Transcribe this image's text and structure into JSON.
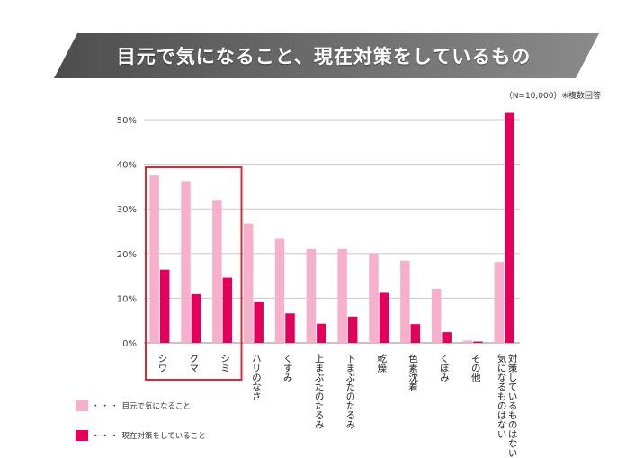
{
  "title": "目元で気になること、現在対策をしているもの",
  "note": "（N=10,000）※複数回答",
  "colors": {
    "concern": "#f7afcb",
    "action": "#e2005a",
    "highlight": "#d62c35",
    "banner_dark": "#4e4e4e",
    "banner_light": "#8a8a8a"
  },
  "legend": {
    "leader": "・・・",
    "items": [
      {
        "key": "concern",
        "label": "目元で気になること"
      },
      {
        "key": "action",
        "label": "現在対策をしていること"
      }
    ]
  },
  "chart_data": {
    "type": "bar",
    "categories": [
      "シワ",
      "クマ",
      "シミ",
      "ハリのなさ",
      "くすみ",
      "上まぶたのたるみ",
      "下まぶたのたるみ",
      "乾燥",
      "色素沈着",
      "くぼみ",
      "その他",
      "気になるものはない／対策しているものはない"
    ],
    "category_lines": [
      [
        "シワ"
      ],
      [
        "クマ"
      ],
      [
        "シミ"
      ],
      [
        "ハリのなさ"
      ],
      [
        "くすみ"
      ],
      [
        "上まぶたのたるみ"
      ],
      [
        "下まぶたのたるみ"
      ],
      [
        "乾燥"
      ],
      [
        "色素沈着"
      ],
      [
        "くぼみ"
      ],
      [
        "その他"
      ],
      [
        "気になるものはない",
        "対策しているものはない"
      ]
    ],
    "series": [
      {
        "key": "concern",
        "values": [
          37.5,
          36.2,
          32,
          26.7,
          23.3,
          21,
          21,
          20,
          18.4,
          12.1,
          0.5,
          18.1
        ]
      },
      {
        "key": "action",
        "values": [
          16.4,
          10.9,
          14.6,
          9.1,
          6.6,
          4.3,
          5.9,
          11.2,
          4.2,
          2.4,
          0.3,
          51.5
        ]
      }
    ],
    "yticks": [
      "0%",
      "10%",
      "20%",
      "30%",
      "40%",
      "50%"
    ],
    "ylim": [
      0,
      50
    ],
    "highlight_categories": [
      0,
      1,
      2
    ],
    "grid": true
  }
}
